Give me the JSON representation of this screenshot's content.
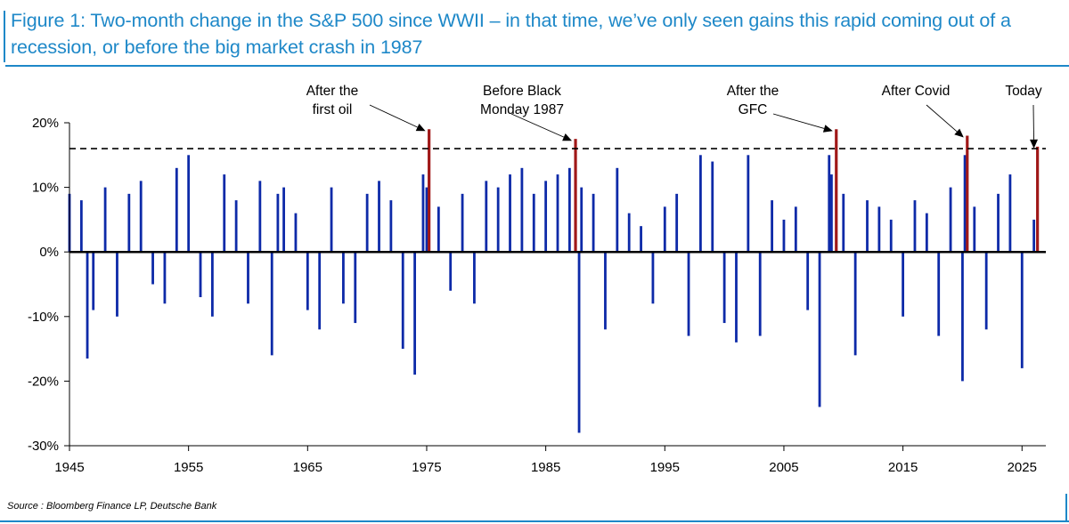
{
  "title": "Figure 1: Two-month change in the S&P 500 since WWII – in that time, we’ve only seen gains this rapid coming out of a recession, or before the big market crash in 1987",
  "source": "Source : Bloomberg Finance LP, Deutsche Bank",
  "colors": {
    "accent": "#1e88c8",
    "bar": "#0d2aa8",
    "highlight": "#a01818"
  },
  "chart_data": {
    "type": "bar",
    "xlim": [
      1945,
      2027
    ],
    "ylim": [
      -30,
      20
    ],
    "x_ticks": [
      "1945",
      "1955",
      "1965",
      "1975",
      "1985",
      "1995",
      "2005",
      "2015",
      "2025"
    ],
    "y_ticks": [
      "20%",
      "10%",
      "0%",
      "-10%",
      "-20%",
      "-30%"
    ],
    "threshold": 16,
    "annotations": [
      {
        "lines": [
          "After the",
          "first oil"
        ],
        "x": 1975.2,
        "y": 19
      },
      {
        "lines": [
          "Before Black",
          "Monday 1987"
        ],
        "x": 1987.5,
        "y": 17.5
      },
      {
        "lines": [
          "After the",
          "GFC"
        ],
        "x": 2009.4,
        "y": 19
      },
      {
        "lines": [
          "After Covid"
        ],
        "x": 2020.4,
        "y": 18
      },
      {
        "lines": [
          "Today"
        ],
        "x": 2026.3,
        "y": 16.3
      }
    ],
    "highlights": [
      {
        "x": 1975.2,
        "y": 19
      },
      {
        "x": 1987.5,
        "y": 17.5
      },
      {
        "x": 2009.4,
        "y": 19
      },
      {
        "x": 2020.4,
        "y": 18
      },
      {
        "x": 2026.3,
        "y": 16.3
      }
    ],
    "series": [
      {
        "x": [
          1945,
          1946,
          1946.5,
          1947,
          1948,
          1949,
          1950,
          1951,
          1952,
          1953,
          1954,
          1955,
          1956,
          1957,
          1958,
          1959,
          1960,
          1961,
          1962,
          1962.5,
          1963,
          1964,
          1965,
          1966,
          1967,
          1968,
          1969,
          1970,
          1971,
          1972,
          1973,
          1974,
          1974.7,
          1975,
          1976,
          1977,
          1978,
          1979,
          1980,
          1981,
          1982,
          1983,
          1984,
          1985,
          1986,
          1987,
          1987.8,
          1988,
          1989,
          1990,
          1991,
          1992,
          1993,
          1994,
          1995,
          1996,
          1997,
          1998,
          1999,
          2000,
          2001,
          2002,
          2003,
          2004,
          2005,
          2006,
          2007,
          2008,
          2008.8,
          2009,
          2010,
          2011,
          2012,
          2013,
          2014,
          2015,
          2016,
          2017,
          2018,
          2019,
          2020,
          2020.2,
          2021,
          2022,
          2023,
          2024,
          2025,
          2026
        ],
        "values": [
          9,
          8,
          -16.5,
          -9,
          10,
          -10,
          9,
          11,
          -5,
          -8,
          13,
          15,
          -7,
          -10,
          12,
          8,
          -8,
          11,
          -16,
          9,
          10,
          6,
          -9,
          -12,
          10,
          -8,
          -11,
          9,
          11,
          8,
          -15,
          -19,
          12,
          10,
          7,
          -6,
          9,
          -8,
          11,
          10,
          12,
          13,
          9,
          11,
          12,
          13,
          -28,
          10,
          9,
          -12,
          13,
          6,
          4,
          -8,
          7,
          9,
          -13,
          15,
          14,
          -11,
          -14,
          15,
          -13,
          8,
          5,
          7,
          -9,
          -24,
          15,
          12,
          9,
          -16,
          8,
          7,
          5,
          -10,
          8,
          6,
          -13,
          10,
          -20,
          15,
          7,
          -12,
          9,
          12,
          -18,
          5
        ]
      }
    ]
  }
}
